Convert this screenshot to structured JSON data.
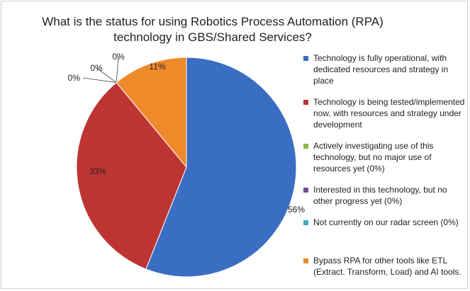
{
  "chart_data": {
    "type": "pie",
    "title": "What is the status for using Robotics Process Automation (RPA) technology in GBS/Shared Services?",
    "series": [
      {
        "label": "Technology is fully operational, with dedicated resources and strategy in place",
        "value": 56,
        "data_label": "56%",
        "color": "#3a6ec2"
      },
      {
        "label": "Technology is being tested/implemented now, with resources and strategy under development",
        "value": 33,
        "data_label": "33%",
        "color": "#bd3533"
      },
      {
        "label": "Actively investigating use of this technology, but no major use of resources yet (0%)",
        "value": 0,
        "data_label": "0%",
        "color": "#8db44f"
      },
      {
        "label": "Interested in this technology, but no other progress yet (0%)",
        "value": 0,
        "data_label": "0%",
        "color": "#6f4fa0"
      },
      {
        "label": "Not currently on our radar screen (0%)",
        "value": 0,
        "data_label": "0%",
        "color": "#3fa8c4"
      },
      {
        "label": "Bypass RPA for other tools like ETL (Extract. Transform, Load) and AI tools.",
        "value": 11,
        "data_label": "11%",
        "color": "#ef8a2b"
      }
    ],
    "legend_position": "right"
  }
}
